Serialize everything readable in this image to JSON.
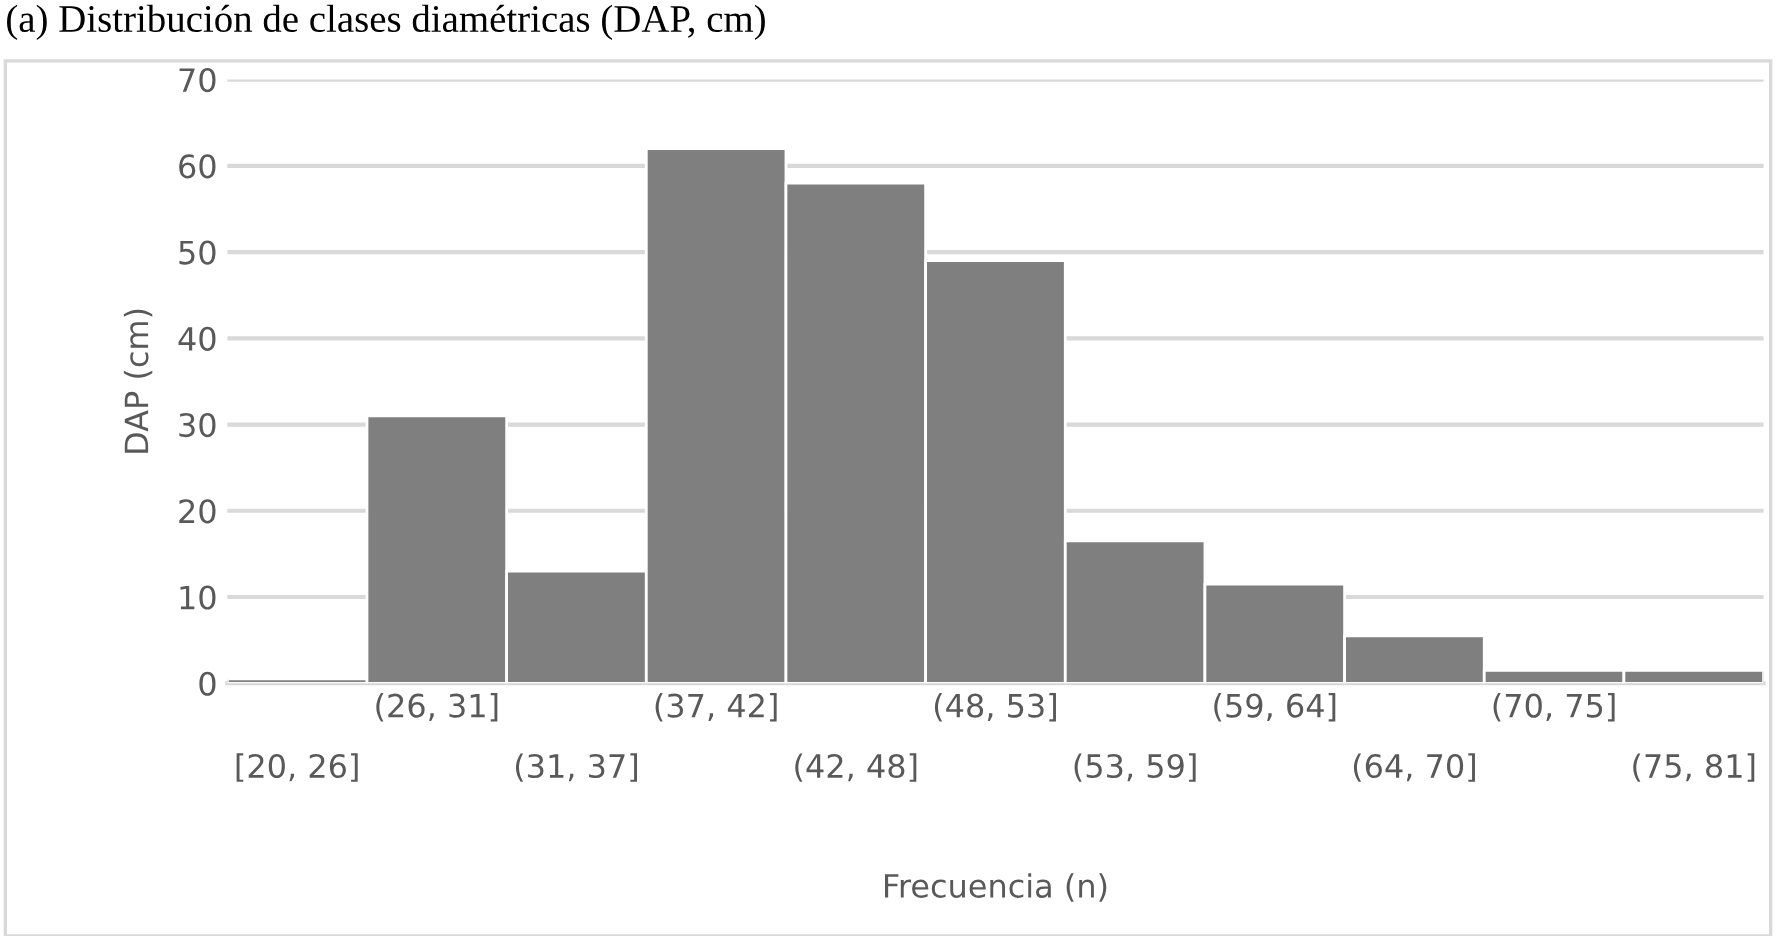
{
  "chart_data": {
    "type": "bar",
    "title": "(a) Distribución de clases diamétricas (DAP, cm)",
    "xlabel": "Frecuencia (n)",
    "ylabel": "DAP (cm)",
    "categories": [
      "[20, 26]",
      "(26, 31]",
      "(31, 37]",
      "(37, 42]",
      "(42, 48]",
      "(48, 53]",
      "(53, 59]",
      "(59, 64]",
      "(64, 70]",
      "(70, 75]",
      "(75, 81]"
    ],
    "values": [
      0.5,
      31,
      13,
      62,
      58,
      49,
      16.5,
      11.5,
      5.5,
      1.5,
      1.5
    ],
    "color": "#7f7f7f",
    "ylim": [
      0,
      70
    ],
    "yticks": [
      0,
      10,
      20,
      30,
      40,
      50,
      60,
      70
    ],
    "grid": "y"
  }
}
